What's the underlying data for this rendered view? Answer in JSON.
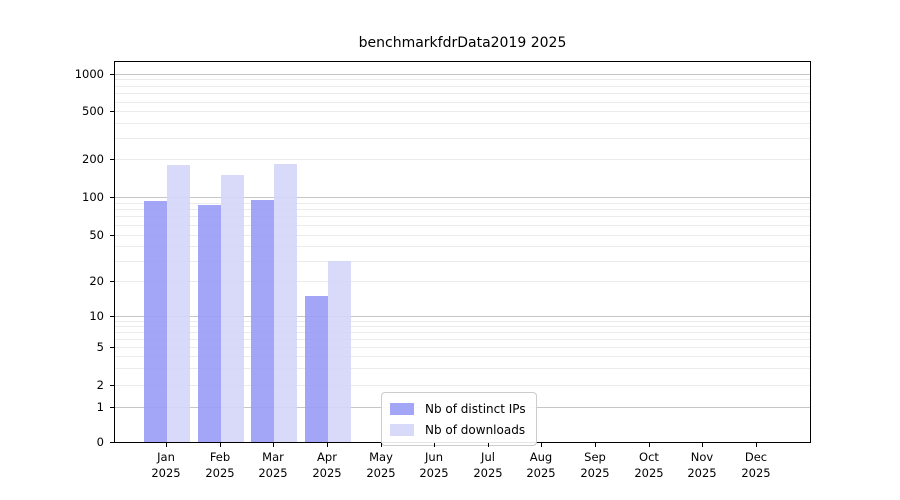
{
  "title": "benchmarkfdrData2019 2025",
  "colors": {
    "bar_distinct_ips": "rgba(153,155,245,0.9)",
    "bar_downloads": "rgba(213,214,249,0.9)",
    "legend_swatch_distinct_ips": "#a3a5f6",
    "legend_swatch_downloads": "#d9dafa",
    "grid_major": "#c6c6c6",
    "grid_minor": "#ebebeb",
    "axis_spine": "#000000"
  },
  "legend": {
    "items": [
      {
        "key": "distinct_ips",
        "label": "Nb of distinct IPs"
      },
      {
        "key": "downloads",
        "label": "Nb of downloads"
      }
    ]
  },
  "chart_data": {
    "type": "bar",
    "title": "benchmarkfdrData2019 2025",
    "x_labels": [
      {
        "month": "Jan",
        "year": "2025"
      },
      {
        "month": "Feb",
        "year": "2025"
      },
      {
        "month": "Mar",
        "year": "2025"
      },
      {
        "month": "Apr",
        "year": "2025"
      },
      {
        "month": "May",
        "year": "2025"
      },
      {
        "month": "Jun",
        "year": "2025"
      },
      {
        "month": "Jul",
        "year": "2025"
      },
      {
        "month": "Aug",
        "year": "2025"
      },
      {
        "month": "Sep",
        "year": "2025"
      },
      {
        "month": "Oct",
        "year": "2025"
      },
      {
        "month": "Nov",
        "year": "2025"
      },
      {
        "month": "Dec",
        "year": "2025"
      }
    ],
    "series": [
      {
        "key": "distinct_ips",
        "name": "Nb of distinct IPs",
        "values": [
          92,
          86,
          95,
          15,
          0,
          0,
          0,
          0,
          0,
          0,
          0,
          0
        ]
      },
      {
        "key": "downloads",
        "name": "Nb of downloads",
        "values": [
          180,
          150,
          182,
          30,
          0,
          0,
          0,
          0,
          0,
          0,
          0,
          0
        ]
      }
    ],
    "y_axis": {
      "scale": "symlog",
      "range": [
        0,
        1000
      ],
      "ticks": [
        {
          "value": 0,
          "label": "0",
          "pos": 0.0
        },
        {
          "value": 1,
          "label": "1",
          "pos": 0.092
        },
        {
          "value": 2,
          "label": "2",
          "pos": 0.151
        },
        {
          "value": 5,
          "label": "5",
          "pos": 0.249
        },
        {
          "value": 10,
          "label": "10",
          "pos": 0.332
        },
        {
          "value": 20,
          "label": "20",
          "pos": 0.423
        },
        {
          "value": 50,
          "label": "50",
          "pos": 0.545
        },
        {
          "value": 100,
          "label": "100",
          "pos": 0.645
        },
        {
          "value": 200,
          "label": "200",
          "pos": 0.745
        },
        {
          "value": 500,
          "label": "500",
          "pos": 0.87
        },
        {
          "value": 1000,
          "label": "1000",
          "pos": 0.969
        }
      ],
      "major_grid_values": [
        1,
        10,
        100,
        1000
      ],
      "minor_grid_values": [
        2,
        3,
        4,
        5,
        6,
        7,
        8,
        9,
        20,
        30,
        40,
        50,
        60,
        70,
        80,
        90,
        200,
        300,
        400,
        500,
        600,
        700,
        800,
        900
      ]
    },
    "grid": "on",
    "legend_position": "lower center"
  }
}
